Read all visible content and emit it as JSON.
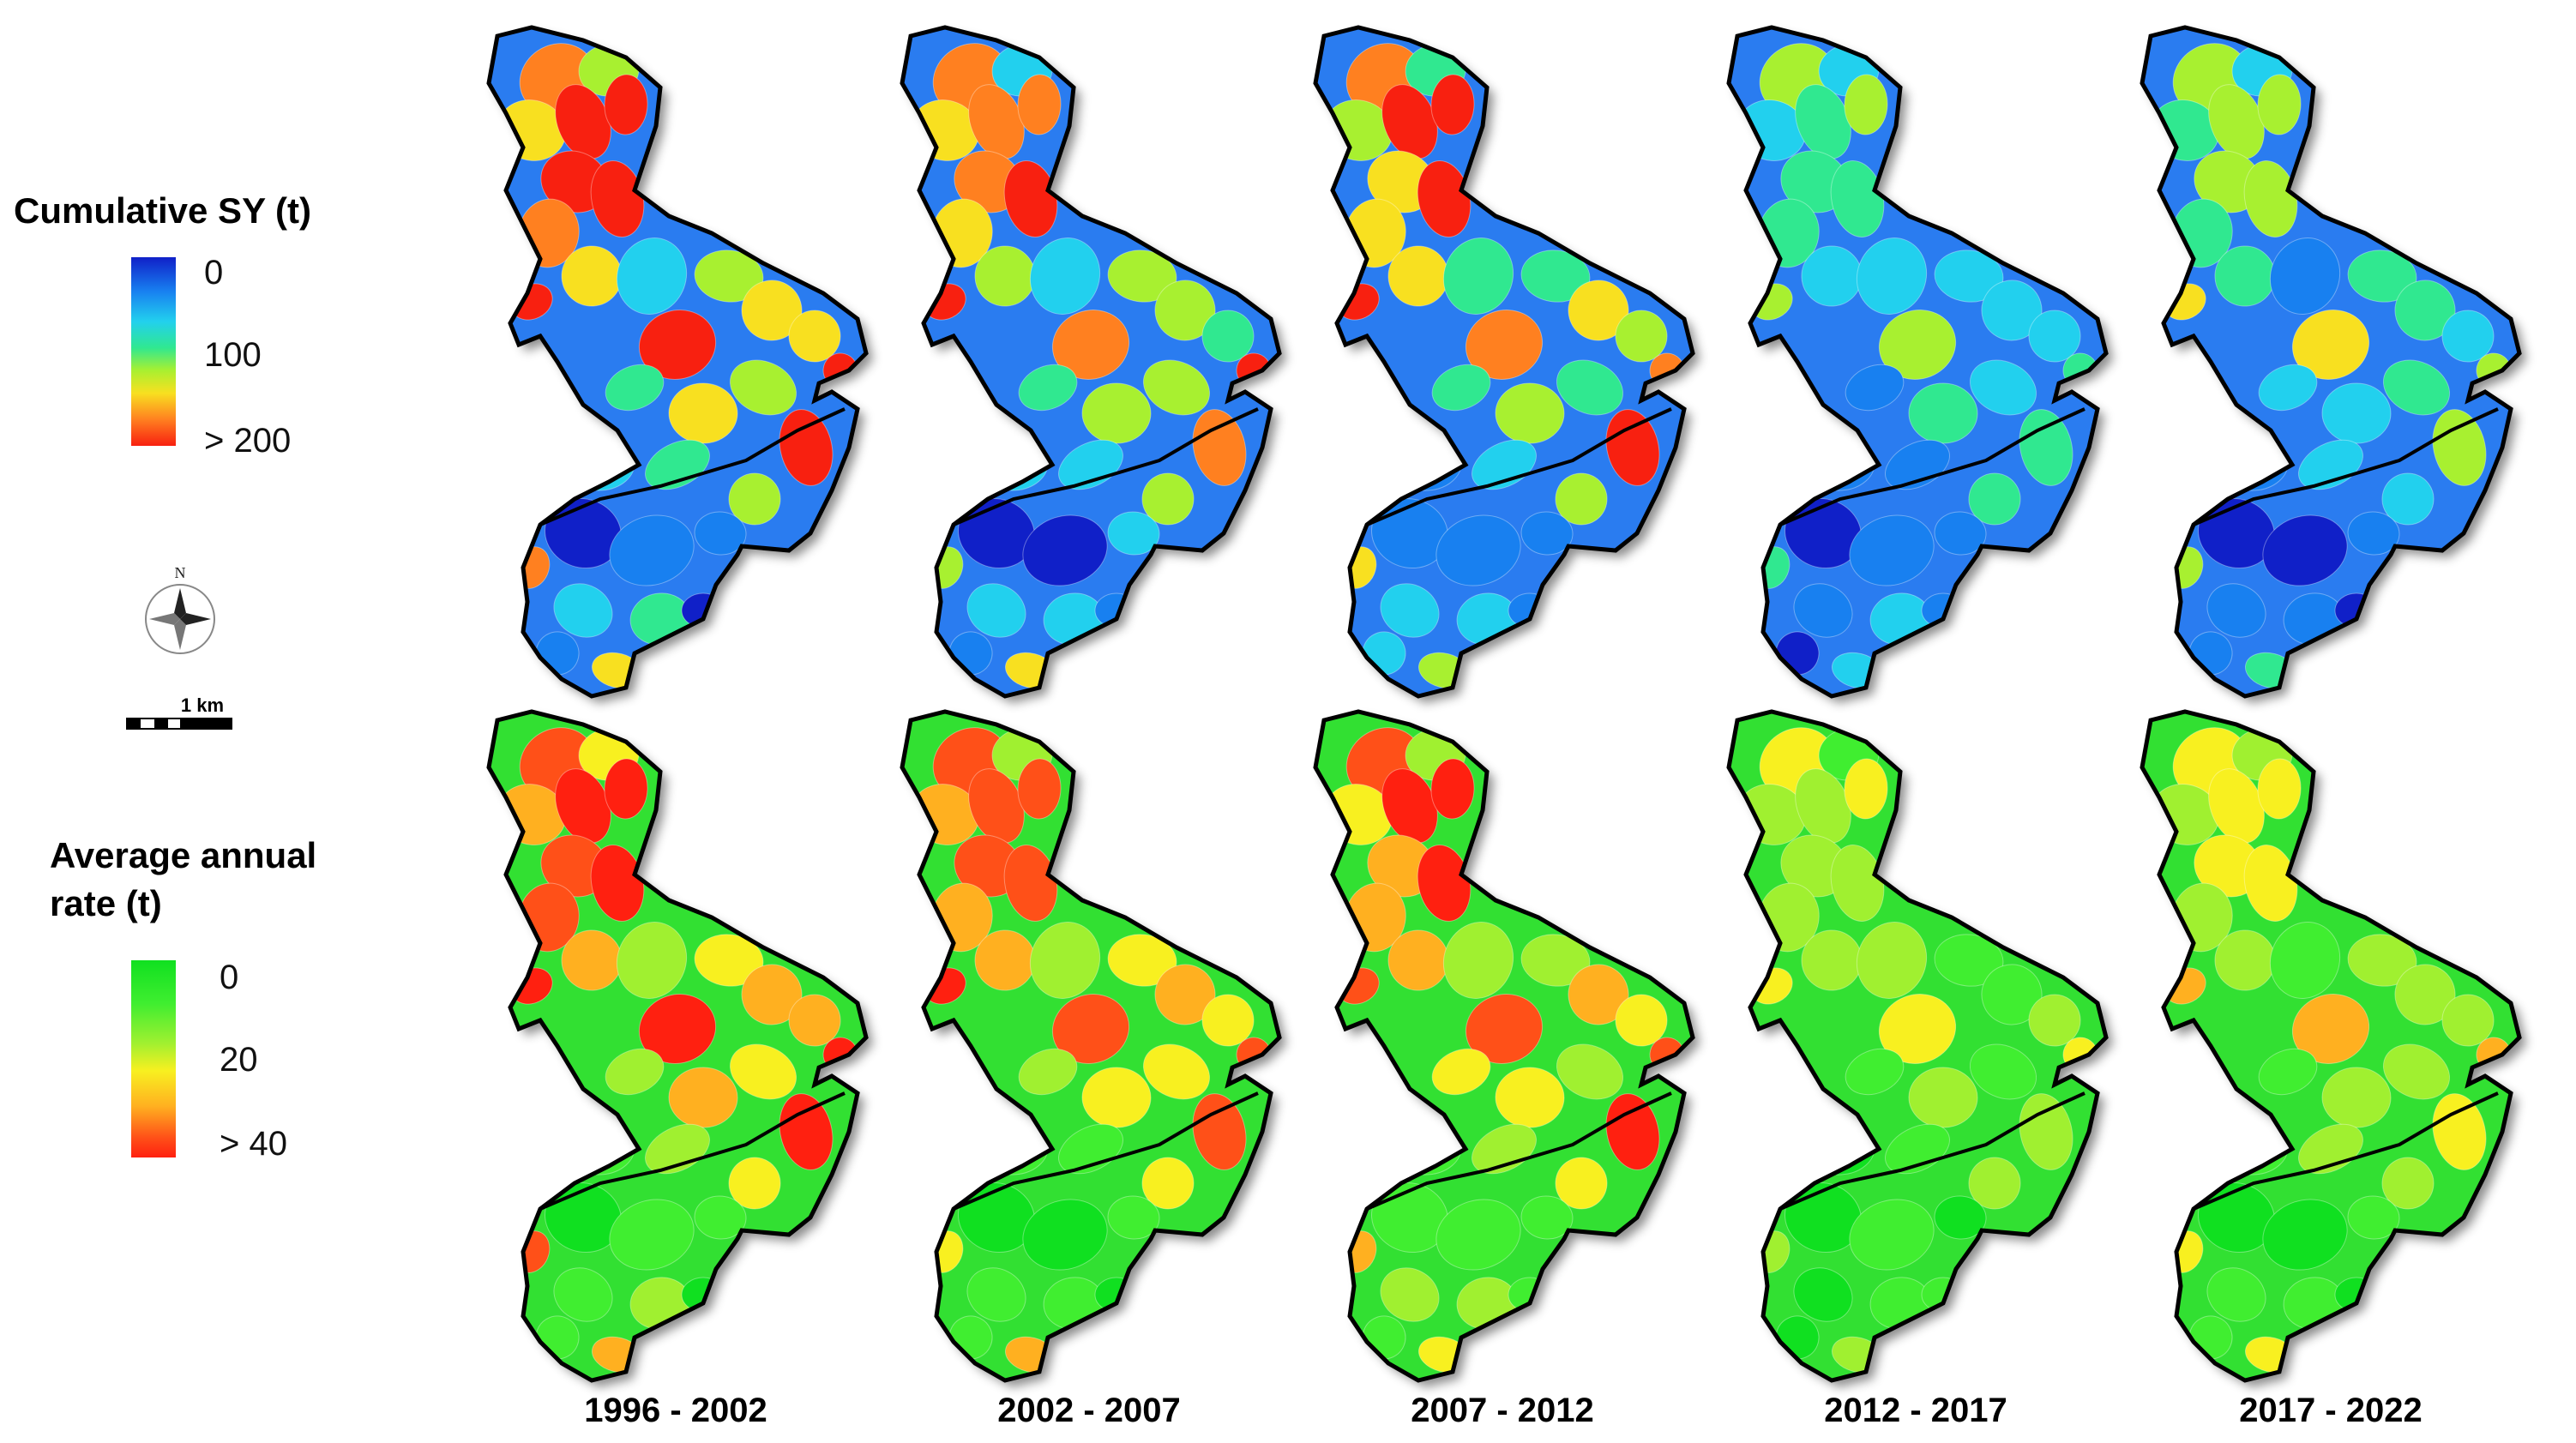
{
  "legend_sy": {
    "title": "Cumulative SY (t)",
    "ticks": [
      "0",
      "100",
      "> 200"
    ],
    "colors": [
      "#1020c8",
      "#1880f0",
      "#22d0ee",
      "#30e890",
      "#a8f030",
      "#f8e020",
      "#ff8020",
      "#f82010"
    ]
  },
  "legend_rate": {
    "title_line1": "Average annual",
    "title_line2": "rate (t)",
    "ticks": [
      "0",
      "20",
      "> 40"
    ],
    "colors": [
      "#10e020",
      "#40ee30",
      "#a0f030",
      "#f8f020",
      "#ffb020",
      "#ff5018",
      "#ff2010"
    ]
  },
  "north_arrow": {
    "label": "N",
    "icon": "compass-rose-icon"
  },
  "scale_bar": {
    "label": "1 km"
  },
  "periods": [
    "1996 - 2002",
    "2002 - 2007",
    "2007 - 2012",
    "2012 - 2017",
    "2017 - 2022"
  ],
  "rows": [
    "Cumulative SY (t)",
    "Average annual rate (t)"
  ]
}
